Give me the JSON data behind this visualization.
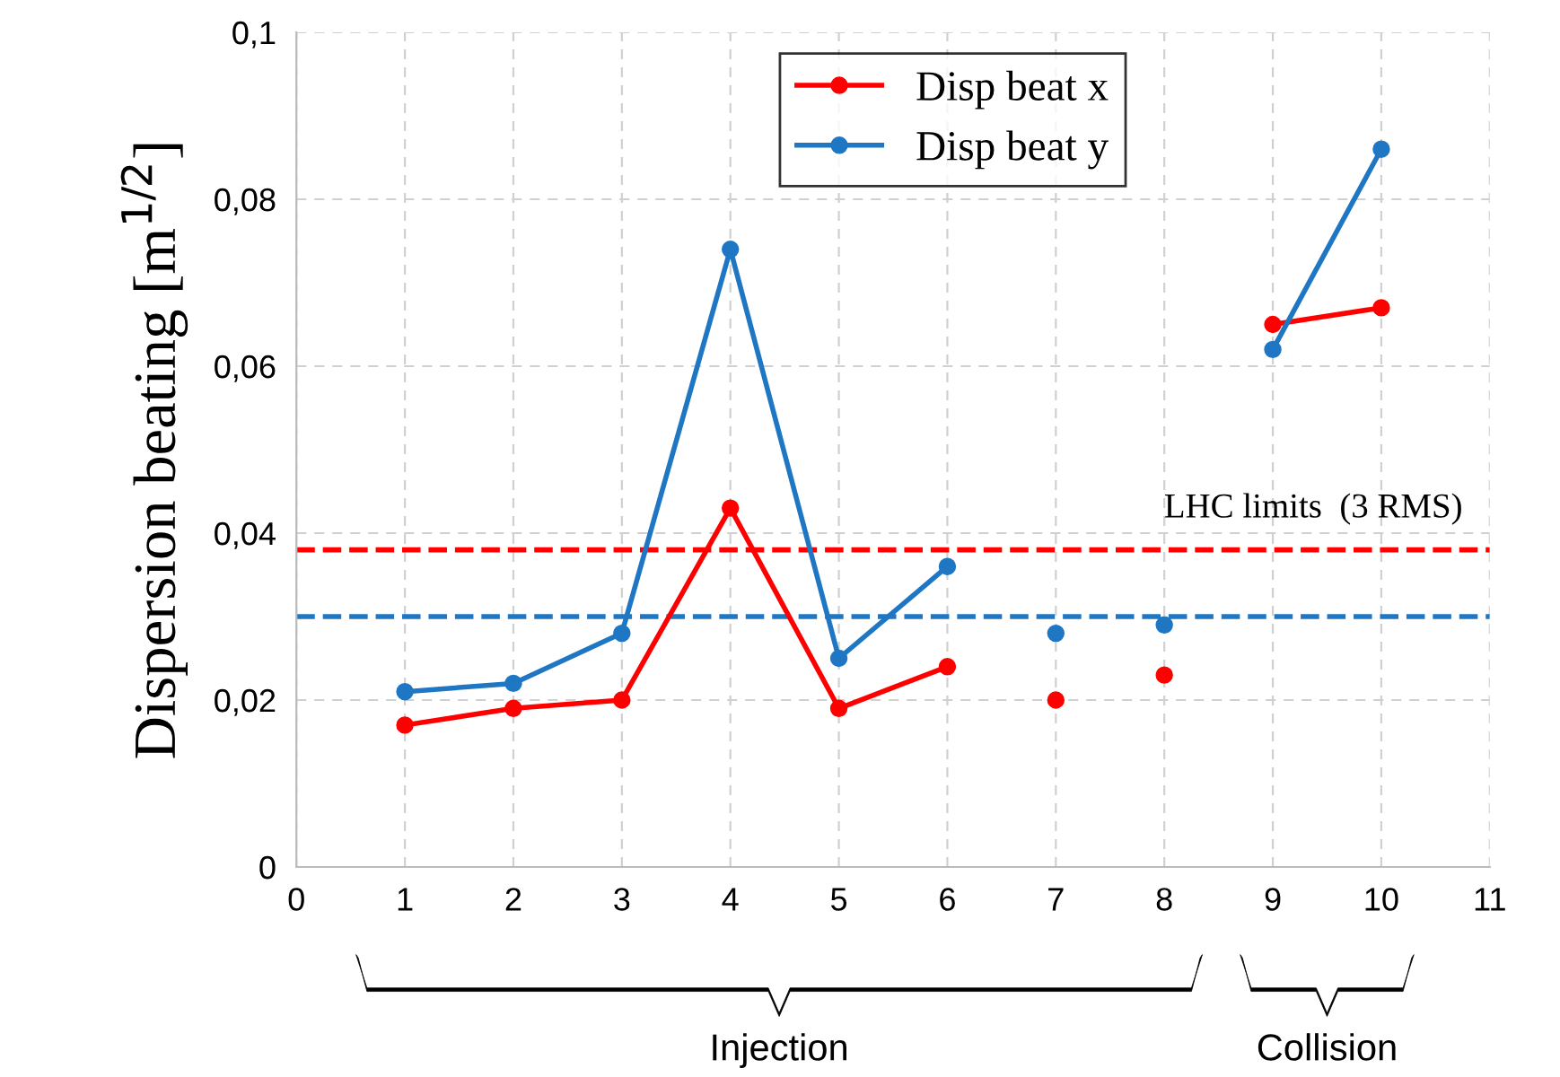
{
  "chart_data": {
    "type": "line",
    "ylabel": "Dispersion beating [m$^{1/2}$]",
    "x": [
      1,
      2,
      3,
      4,
      5,
      6,
      6.5,
      7,
      7.5,
      8,
      8.5,
      9,
      10
    ],
    "series": [
      {
        "name": "Disp beat x",
        "color": "#ff0000",
        "values": [
          0.017,
          0.019,
          0.02,
          0.043,
          0.019,
          0.024,
          null,
          0.02,
          null,
          0.023,
          null,
          0.065,
          0.067
        ]
      },
      {
        "name": "Disp beat y",
        "color": "#1f77c4",
        "values": [
          0.021,
          0.022,
          0.028,
          0.074,
          0.025,
          0.036,
          null,
          0.028,
          null,
          0.029,
          null,
          0.062,
          0.086
        ]
      }
    ],
    "xlim": [
      0,
      11
    ],
    "xticks": [
      0,
      1,
      2,
      3,
      4,
      5,
      6,
      7,
      8,
      9,
      10,
      11
    ],
    "ylim": [
      0,
      0.1
    ],
    "yticks": [
      0,
      {
        "value": 0.02,
        "label": "0,02"
      },
      {
        "value": 0.04,
        "label": "0,04"
      },
      {
        "value": 0.06,
        "label": "0,06"
      },
      {
        "value": 0.08,
        "label": "0,08"
      },
      {
        "value": 0.1,
        "label": "0,1"
      }
    ],
    "ref_lines": [
      {
        "axis": "y",
        "value": 0.038,
        "label": "LHC limits  (3 RMS)",
        "color": "#ff0000",
        "line_style": "dashed"
      },
      {
        "axis": "y",
        "value": 0.03,
        "color": "#1f77c4",
        "line_style": "dashed"
      }
    ],
    "annotations": [
      "Injection",
      "Collision"
    ],
    "grid": true,
    "legend": "top",
    "marker": "circle",
    "line_style": "solid"
  }
}
